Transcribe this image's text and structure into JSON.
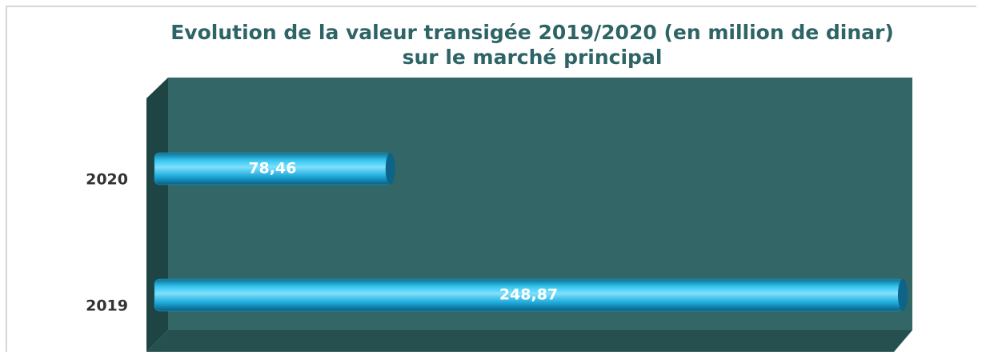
{
  "chart_data": {
    "type": "bar",
    "orientation": "horizontal",
    "title": [
      "Evolution de la valeur transigée 2019/2020  (en million de dinar)",
      "sur le marché principal"
    ],
    "categories": [
      "2020",
      "2019"
    ],
    "values": [
      78.46,
      248.87
    ],
    "value_labels": [
      "78,46",
      "248,87"
    ],
    "color": "#1aa7d9"
  }
}
